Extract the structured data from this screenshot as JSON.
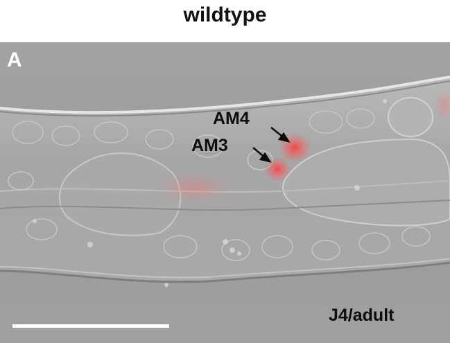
{
  "figure": {
    "title": "wildtype",
    "panel_letter": "A",
    "labels": {
      "am4": "AM4",
      "am3": "AM3"
    },
    "stage": "J4/adult"
  },
  "colors": {
    "background": "#9c9c9c",
    "fluorescence": "#ff3c3c",
    "text": "#0d0d0d",
    "panel_letter": "#ffffff",
    "scale_bar": "#ffffff"
  }
}
